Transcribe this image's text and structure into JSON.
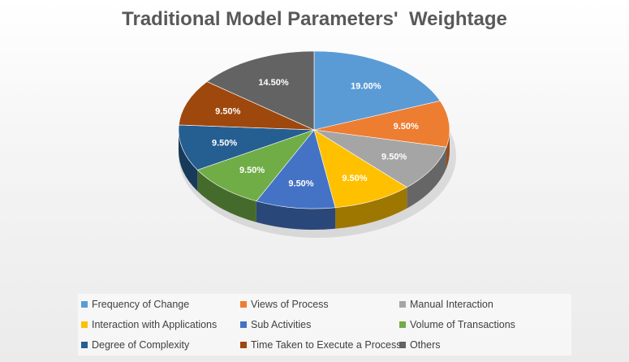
{
  "chart_data": {
    "type": "pie",
    "title": "Traditional Model Parameters'  Weightage",
    "slices": [
      {
        "label": "Frequency of Change",
        "value": 19.0,
        "display": "19.00%",
        "color": "#5b9bd5"
      },
      {
        "label": "Views of Process",
        "value": 9.5,
        "display": "9.50%",
        "color": "#ed7d31"
      },
      {
        "label": "Manual Interaction",
        "value": 9.5,
        "display": "9.50%",
        "color": "#a5a5a5"
      },
      {
        "label": "Interaction with Applications",
        "value": 9.5,
        "display": "9.50%",
        "color": "#ffc000"
      },
      {
        "label": "Sub Activities",
        "value": 9.5,
        "display": "9.50%",
        "color": "#4472c4"
      },
      {
        "label": "Volume of Transactions",
        "value": 9.5,
        "display": "9.50%",
        "color": "#70ad47"
      },
      {
        "label": "Degree of Complexity",
        "value": 9.5,
        "display": "9.50%",
        "color": "#255e91"
      },
      {
        "label": "Time Taken to Execute a Process",
        "value": 9.5,
        "display": "9.50%",
        "color": "#9e480e"
      },
      {
        "label": "Others",
        "value": 14.5,
        "display": "14.50%",
        "color": "#636363"
      }
    ],
    "legend_position": "bottom",
    "style": "3d-pie"
  }
}
